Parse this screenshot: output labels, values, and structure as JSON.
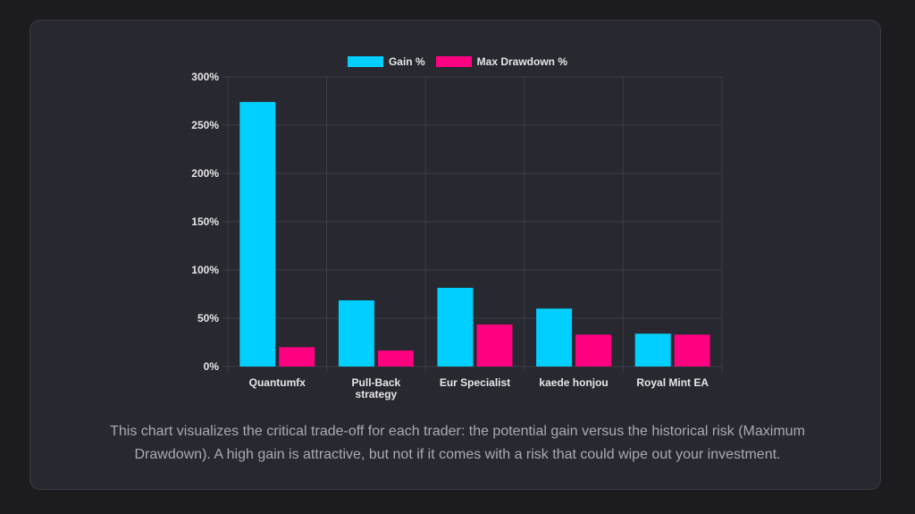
{
  "chart_data": {
    "type": "bar",
    "title": "",
    "xlabel": "",
    "ylabel": "",
    "categories": [
      [
        "Quantumfx"
      ],
      [
        "Pull-Back",
        "strategy"
      ],
      [
        "Eur Specialist"
      ],
      [
        "kaede honjou"
      ],
      [
        "Royal Mint EA"
      ]
    ],
    "series": [
      {
        "name": "Gain %",
        "color": "#00cfff",
        "values": [
          274,
          68.5,
          81.5,
          60,
          34
        ]
      },
      {
        "name": "Max Drawdown %",
        "color": "#ff0080",
        "values": [
          20,
          16.5,
          43.5,
          33,
          33
        ]
      }
    ],
    "ylim": [
      0,
      300
    ],
    "yticks": [
      0,
      50,
      100,
      150,
      200,
      250,
      300
    ],
    "ytick_suffix": "%",
    "grid": true,
    "legend_position": "top-center"
  },
  "caption": "This chart visualizes the critical trade-off for each trader: the potential gain versus the historical risk (Maximum Drawdown). A high gain is attractive, but not if it comes with a risk that could wipe out your investment."
}
